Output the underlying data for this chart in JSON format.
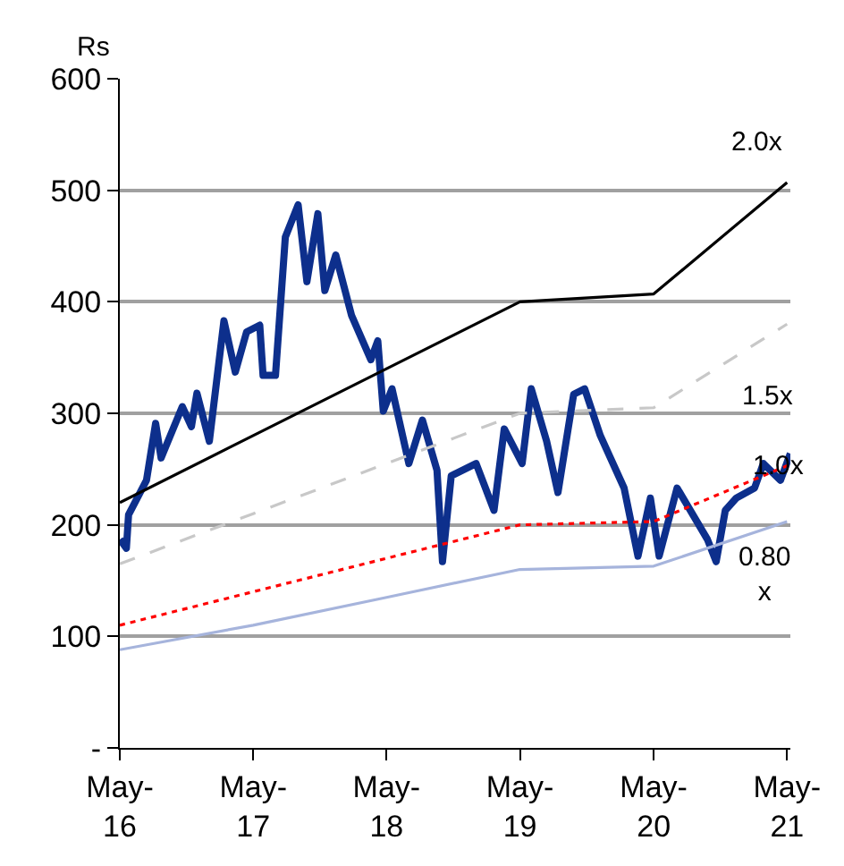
{
  "chart_data": {
    "type": "line",
    "ylabel": "Rs",
    "legend": false,
    "grid": "y",
    "xlim": [
      "2016-05-01",
      "2021-05-10"
    ],
    "xticks": [
      {
        "value": "2016-05-01",
        "label": "May-\n16"
      },
      {
        "value": "2017-05-01",
        "label": "May-\n17"
      },
      {
        "value": "2018-05-01",
        "label": "May-\n18"
      },
      {
        "value": "2019-05-01",
        "label": "May-\n19"
      },
      {
        "value": "2020-05-01",
        "label": "May-\n20"
      },
      {
        "value": "2021-05-01",
        "label": "May-\n21"
      }
    ],
    "ylim": [
      0,
      600
    ],
    "yticks": [
      {
        "value": 0,
        "label": "-"
      },
      100,
      200,
      300,
      400,
      500,
      600
    ],
    "series": [
      {
        "color": "#0d2f8c",
        "line_style": "solid",
        "x": [
          "2016-05-01",
          "2016-05-19",
          "2016-05-25",
          "2016-07-13",
          "2016-08-07",
          "2016-08-22",
          "2016-10-19",
          "2016-11-13",
          "2016-11-28",
          "2017-01-01",
          "2017-02-10",
          "2017-03-13",
          "2017-04-13",
          "2017-05-19",
          "2017-05-28",
          "2017-07-01",
          "2017-07-28",
          "2017-09-01",
          "2017-09-25",
          "2017-10-25",
          "2017-11-13",
          "2017-12-13",
          "2018-01-25",
          "2018-03-19",
          "2018-04-07",
          "2018-04-22",
          "2018-05-16",
          "2018-07-01",
          "2018-08-07",
          "2018-09-16",
          "2018-10-01",
          "2018-10-25",
          "2019-01-01",
          "2019-02-19",
          "2019-03-19",
          "2019-05-07",
          "2019-06-01",
          "2019-07-13",
          "2019-08-13",
          "2019-09-25",
          "2019-10-25",
          "2019-12-07",
          "2020-02-10",
          "2020-03-19",
          "2020-04-22",
          "2020-05-16",
          "2020-07-04",
          "2020-09-25",
          "2020-10-19",
          "2020-11-13",
          "2020-12-13",
          "2021-02-01",
          "2021-02-25",
          "2021-04-13",
          "2021-05-10"
        ],
        "values": [
          187,
          179,
          209,
          240,
          291,
          260,
          306,
          288,
          318,
          275,
          383,
          337,
          373,
          379,
          334,
          334,
          458,
          487,
          418,
          479,
          410,
          442,
          388,
          348,
          365,
          302,
          322,
          255,
          294,
          249,
          167,
          244,
          255,
          213,
          286,
          255,
          322,
          275,
          229,
          317,
          322,
          280,
          233,
          172,
          224,
          172,
          233,
          187,
          167,
          213,
          224,
          233,
          255,
          240,
          264
        ]
      },
      {
        "name": "2.0x",
        "color": "#000000",
        "line_style": "solid",
        "x": [
          "2016-05-01",
          "2017-05-01",
          "2018-05-01",
          "2019-05-01",
          "2020-05-01",
          "2021-05-01"
        ],
        "values": [
          220,
          280,
          340,
          400,
          407,
          507
        ]
      },
      {
        "name": "1.5x",
        "color": "#c8c8c8",
        "line_style": "dashed",
        "x": [
          "2016-05-01",
          "2017-05-01",
          "2018-05-01",
          "2019-05-01",
          "2020-05-01",
          "2021-05-01"
        ],
        "values": [
          165,
          210,
          255,
          300,
          305,
          380
        ]
      },
      {
        "name": "1.0x",
        "color": "#ff0000",
        "line_style": "dotted",
        "x": [
          "2016-05-01",
          "2017-05-01",
          "2018-05-01",
          "2019-05-01",
          "2020-05-01",
          "2021-05-01"
        ],
        "values": [
          110,
          140,
          170,
          200,
          203,
          253
        ]
      },
      {
        "name": "0.80\nx",
        "color": "#a6b4dc",
        "line_style": "solid",
        "x": [
          "2016-05-01",
          "2017-05-01",
          "2018-05-01",
          "2019-05-01",
          "2020-05-01",
          "2021-05-01"
        ],
        "values": [
          88,
          110,
          135,
          160,
          163,
          203
        ]
      }
    ]
  }
}
